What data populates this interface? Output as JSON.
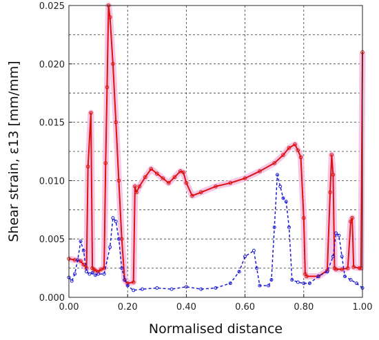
{
  "chart_data": {
    "type": "line",
    "xlabel": "Normalised distance",
    "ylabel": "Shear strain, ε13 [mm/mm]",
    "xlim": [
      0,
      1
    ],
    "ylim": [
      0,
      0.025
    ],
    "x_ticks": [
      0,
      0.2,
      0.4,
      0.6,
      0.8,
      1.0
    ],
    "x_tick_labels": [
      "0.00",
      "0.20",
      "0.40",
      "0.60",
      "0.80",
      "1.00"
    ],
    "y_ticks": [
      0,
      0.005,
      0.01,
      0.015,
      0.02,
      0.025
    ],
    "y_tick_labels": [
      "0.000",
      "0.005",
      "0.010",
      "0.015",
      "0.020",
      "0.025"
    ],
    "grid": true,
    "grid_style": "dashed",
    "colors": {
      "red_series": "#dd1111",
      "red_band": "#f4bde0",
      "blue_series": "#1a1ad6"
    },
    "series": [
      {
        "color": "red",
        "style": "solid line with circle markers",
        "x": [
          0.0,
          0.02,
          0.04,
          0.05,
          0.06,
          0.065,
          0.075,
          0.08,
          0.085,
          0.09,
          0.1,
          0.11,
          0.12,
          0.125,
          0.13,
          0.135,
          0.14,
          0.15,
          0.16,
          0.17,
          0.18,
          0.19,
          0.2,
          0.22,
          0.225,
          0.23,
          0.24,
          0.26,
          0.28,
          0.3,
          0.32,
          0.34,
          0.36,
          0.38,
          0.39,
          0.4,
          0.42,
          0.45,
          0.5,
          0.55,
          0.6,
          0.65,
          0.7,
          0.73,
          0.75,
          0.77,
          0.78,
          0.79,
          0.8,
          0.805,
          0.81,
          0.85,
          0.88,
          0.89,
          0.895,
          0.9,
          0.905,
          0.91,
          0.93,
          0.95,
          0.96,
          0.965,
          0.97,
          0.99,
          0.995,
          1.0
        ],
        "y": [
          0.0033,
          0.0032,
          0.0031,
          0.0028,
          0.0025,
          0.0112,
          0.0158,
          0.0025,
          0.0024,
          0.0023,
          0.0022,
          0.0024,
          0.0025,
          0.0115,
          0.018,
          0.025,
          0.024,
          0.02,
          0.015,
          0.01,
          0.005,
          0.0015,
          0.0012,
          0.0013,
          0.0095,
          0.009,
          0.0095,
          0.0103,
          0.011,
          0.0106,
          0.0102,
          0.0098,
          0.0103,
          0.0108,
          0.0107,
          0.0098,
          0.0087,
          0.009,
          0.0095,
          0.0098,
          0.0102,
          0.0108,
          0.0115,
          0.0122,
          0.0128,
          0.0131,
          0.0126,
          0.012,
          0.0068,
          0.002,
          0.0018,
          0.0018,
          0.0023,
          0.009,
          0.0122,
          0.0105,
          0.0025,
          0.0024,
          0.0024,
          0.0025,
          0.0065,
          0.0068,
          0.0026,
          0.0025,
          0.0025,
          0.021
        ]
      },
      {
        "color": "blue",
        "style": "dashed line with circle markers",
        "x": [
          0.0,
          0.01,
          0.02,
          0.03,
          0.04,
          0.05,
          0.06,
          0.07,
          0.08,
          0.09,
          0.1,
          0.12,
          0.14,
          0.15,
          0.16,
          0.17,
          0.18,
          0.19,
          0.2,
          0.22,
          0.25,
          0.3,
          0.35,
          0.4,
          0.45,
          0.5,
          0.55,
          0.58,
          0.6,
          0.63,
          0.64,
          0.65,
          0.68,
          0.69,
          0.7,
          0.71,
          0.72,
          0.73,
          0.74,
          0.75,
          0.76,
          0.78,
          0.8,
          0.82,
          0.85,
          0.88,
          0.9,
          0.91,
          0.92,
          0.93,
          0.94,
          0.96,
          0.98,
          1.0
        ],
        "y": [
          0.0017,
          0.0014,
          0.002,
          0.0032,
          0.0048,
          0.004,
          0.0022,
          0.002,
          0.0021,
          0.0019,
          0.002,
          0.002,
          0.0043,
          0.0068,
          0.0065,
          0.005,
          0.0025,
          0.0015,
          0.001,
          0.0006,
          0.0007,
          0.0008,
          0.0007,
          0.0009,
          0.0007,
          0.0008,
          0.0012,
          0.0022,
          0.0035,
          0.004,
          0.0025,
          0.001,
          0.001,
          0.0015,
          0.006,
          0.0105,
          0.0095,
          0.0085,
          0.0082,
          0.006,
          0.0015,
          0.0013,
          0.0012,
          0.0012,
          0.0018,
          0.0022,
          0.0035,
          0.0055,
          0.0053,
          0.0035,
          0.0018,
          0.0015,
          0.0012,
          0.0008
        ]
      }
    ]
  }
}
